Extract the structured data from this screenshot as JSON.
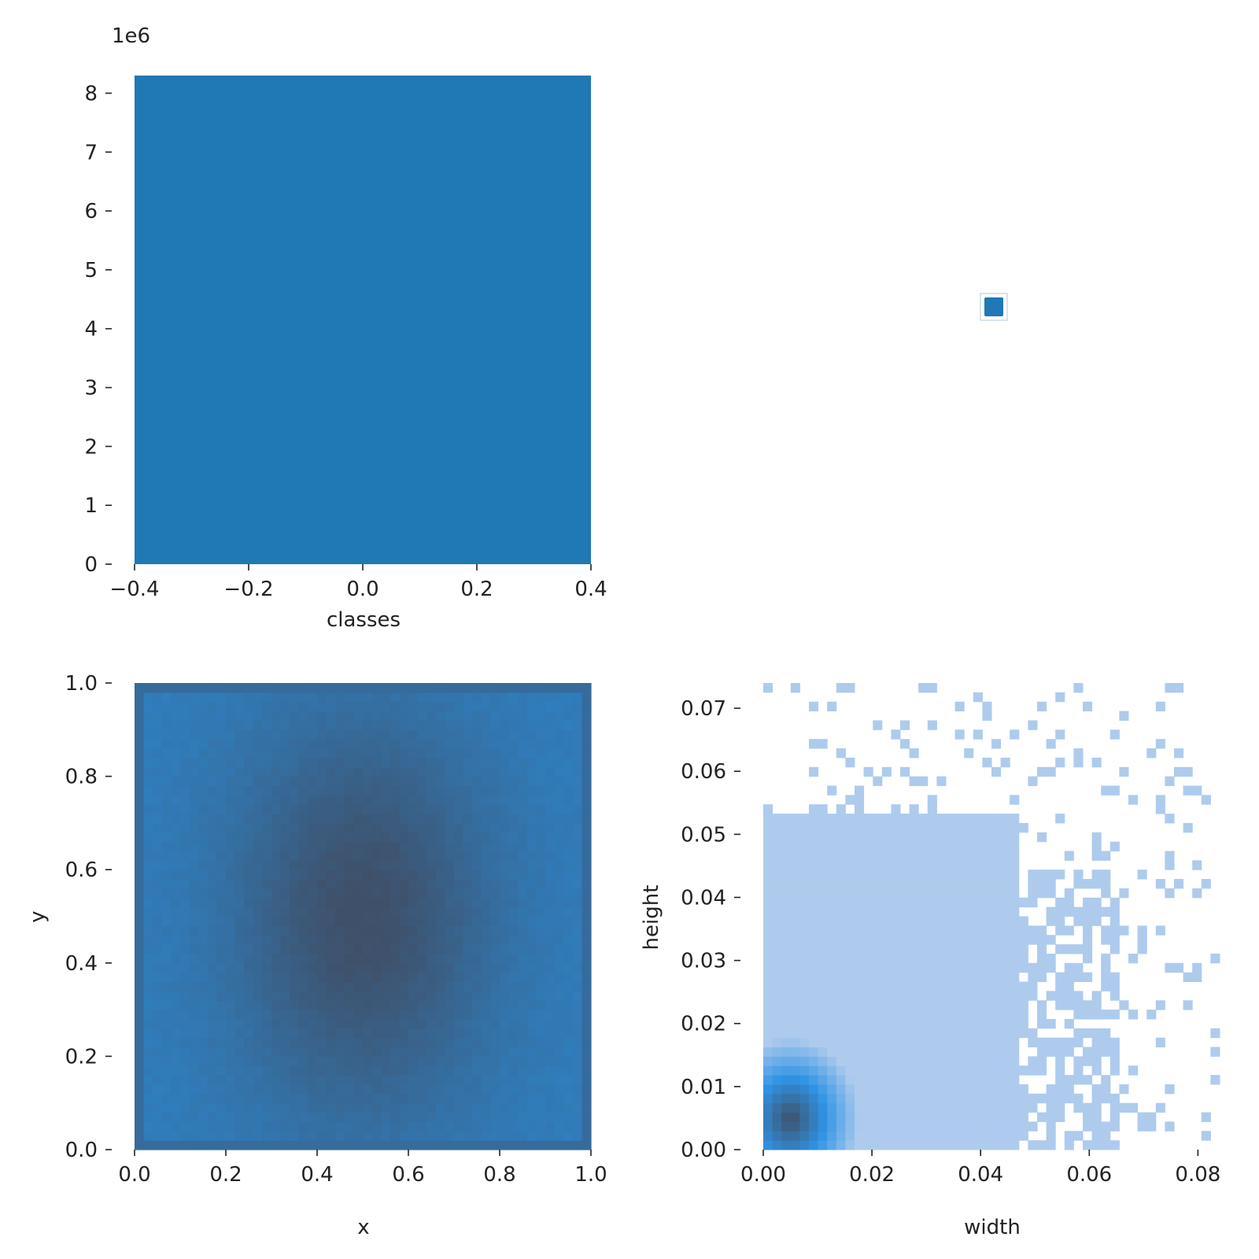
{
  "chart_data": [
    {
      "type": "bar",
      "panel": "top-left",
      "xlabel": "classes",
      "ylabel": "",
      "offset_text": "1e6",
      "categories": [
        "0"
      ],
      "values": [
        8.3
      ],
      "value_multiplier": 1000000,
      "xlim": [
        -0.4,
        0.4
      ],
      "ylim": [
        0,
        8.3
      ],
      "x_ticks": [
        "−0.4",
        "−0.2",
        "0.0",
        "0.2",
        "0.4"
      ],
      "x_tick_values": [
        -0.4,
        -0.2,
        0.0,
        0.2,
        0.4
      ],
      "y_ticks": [
        "0",
        "1",
        "2",
        "3",
        "4",
        "5",
        "6",
        "7",
        "8"
      ],
      "y_tick_values": [
        0,
        1,
        2,
        3,
        4,
        5,
        6,
        7,
        8
      ],
      "color": "#2078b4",
      "grid": false
    },
    {
      "type": "heatmap",
      "panel": "top-right",
      "xlabel": "",
      "ylabel": "",
      "note": "single cell, no axes",
      "x": [
        0
      ],
      "y": [
        0
      ],
      "color": "#2078b4"
    },
    {
      "type": "heatmap",
      "panel": "bottom-left",
      "xlabel": "x",
      "ylabel": "y",
      "xlim": [
        0,
        1
      ],
      "ylim": [
        0,
        1
      ],
      "bins": 50,
      "x_ticks": [
        "0.0",
        "0.2",
        "0.4",
        "0.6",
        "0.8",
        "1.0"
      ],
      "x_tick_values": [
        0,
        0.2,
        0.4,
        0.6,
        0.8,
        1.0
      ],
      "y_ticks": [
        "0.0",
        "0.2",
        "0.4",
        "0.6",
        "0.8",
        "1.0"
      ],
      "y_tick_values": [
        0,
        0.2,
        0.4,
        0.6,
        0.8,
        1.0
      ],
      "density_peak": {
        "x": 0.5,
        "y": 0.5
      },
      "color_low": "#2b8cd7",
      "color_high": "#3f5069",
      "grid": false
    },
    {
      "type": "heatmap",
      "panel": "bottom-right",
      "xlabel": "width",
      "ylabel": "height",
      "xlim": [
        0,
        0.084
      ],
      "ylim": [
        0,
        0.074
      ],
      "bins": 50,
      "x_ticks": [
        "0.00",
        "0.02",
        "0.04",
        "0.06",
        "0.08"
      ],
      "x_tick_values": [
        0,
        0.02,
        0.04,
        0.06,
        0.08
      ],
      "y_ticks": [
        "0.00",
        "0.01",
        "0.02",
        "0.03",
        "0.04",
        "0.05",
        "0.06",
        "0.07"
      ],
      "y_tick_values": [
        0,
        0.01,
        0.02,
        0.03,
        0.04,
        0.05,
        0.06,
        0.07
      ],
      "density_peak": {
        "x": 0.005,
        "y": 0.005
      },
      "color_base": "#aecbed",
      "color_mid": "#2f93e5",
      "color_high": "#3f5069",
      "grid": false
    }
  ]
}
